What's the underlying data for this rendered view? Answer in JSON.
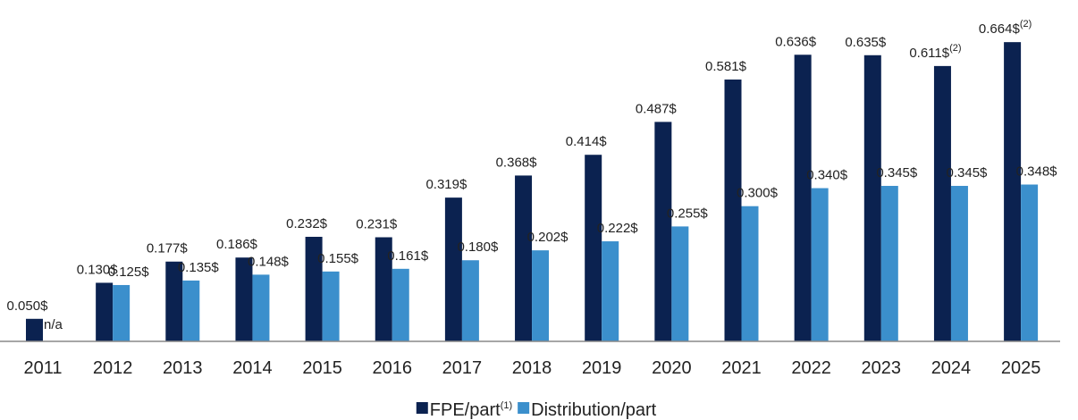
{
  "chart_data": {
    "type": "bar",
    "categories": [
      "2011",
      "2012",
      "2013",
      "2014",
      "2015",
      "2016",
      "2017",
      "2018",
      "2019",
      "2020",
      "2021",
      "2022",
      "2023",
      "2024",
      "2025"
    ],
    "series": [
      {
        "name": "FPE/part",
        "name_note": "(1)",
        "color": "#0b2250",
        "values": [
          0.05,
          0.13,
          0.177,
          0.186,
          0.232,
          0.231,
          0.319,
          0.368,
          0.414,
          0.487,
          0.581,
          0.636,
          0.635,
          0.611,
          0.664
        ],
        "value_labels": [
          "0.050$",
          "0.130$",
          "0.177$",
          "0.186$",
          "0.232$",
          "0.231$",
          "0.319$",
          "0.368$",
          "0.414$",
          "0.487$",
          "0.581$",
          "0.636$",
          "0.635$",
          "0.611$",
          "0.664$"
        ],
        "value_label_notes": [
          null,
          null,
          null,
          null,
          null,
          null,
          null,
          null,
          null,
          null,
          null,
          null,
          null,
          "(2)",
          "(2)"
        ]
      },
      {
        "name": "Distribution/part",
        "color": "#3b8fcc",
        "values": [
          null,
          0.125,
          0.135,
          0.148,
          0.155,
          0.161,
          0.18,
          0.202,
          0.222,
          0.255,
          0.3,
          0.34,
          0.345,
          0.345,
          0.348
        ],
        "value_labels": [
          "n/a",
          "0.125$",
          "0.135$",
          "0.148$",
          "0.155$",
          "0.161$",
          "0.180$",
          "0.202$",
          "0.222$",
          "0.255$",
          "0.300$",
          "0.340$",
          "0.345$",
          "0.345$",
          "0.348$"
        ]
      }
    ],
    "ylim": [
      0,
      0.7
    ],
    "legend": "bottom"
  }
}
